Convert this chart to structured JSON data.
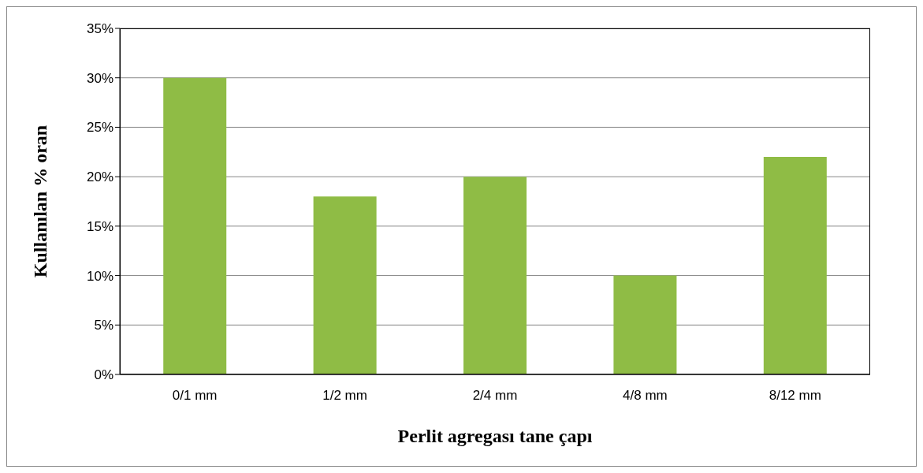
{
  "chart_data": {
    "type": "bar",
    "xlabel": "Perlit agregası tane çapı",
    "ylabel": "Kullanılan % oran",
    "categories": [
      "0/1 mm",
      "1/2 mm",
      "2/4 mm",
      "4/8 mm",
      "8/12 mm"
    ],
    "values": [
      30,
      18,
      20,
      10,
      22
    ],
    "color": "#8fbc45",
    "ylim": [
      0,
      35
    ],
    "yticks": [
      {
        "value": 0,
        "label": "0%"
      },
      {
        "value": 5,
        "label": "5%"
      },
      {
        "value": 10,
        "label": "10%"
      },
      {
        "value": 15,
        "label": "15%"
      },
      {
        "value": 20,
        "label": "20%"
      },
      {
        "value": 25,
        "label": "25%"
      },
      {
        "value": 30,
        "label": "30%"
      },
      {
        "value": 35,
        "label": "35%"
      }
    ],
    "grid": "y",
    "legend": false
  }
}
